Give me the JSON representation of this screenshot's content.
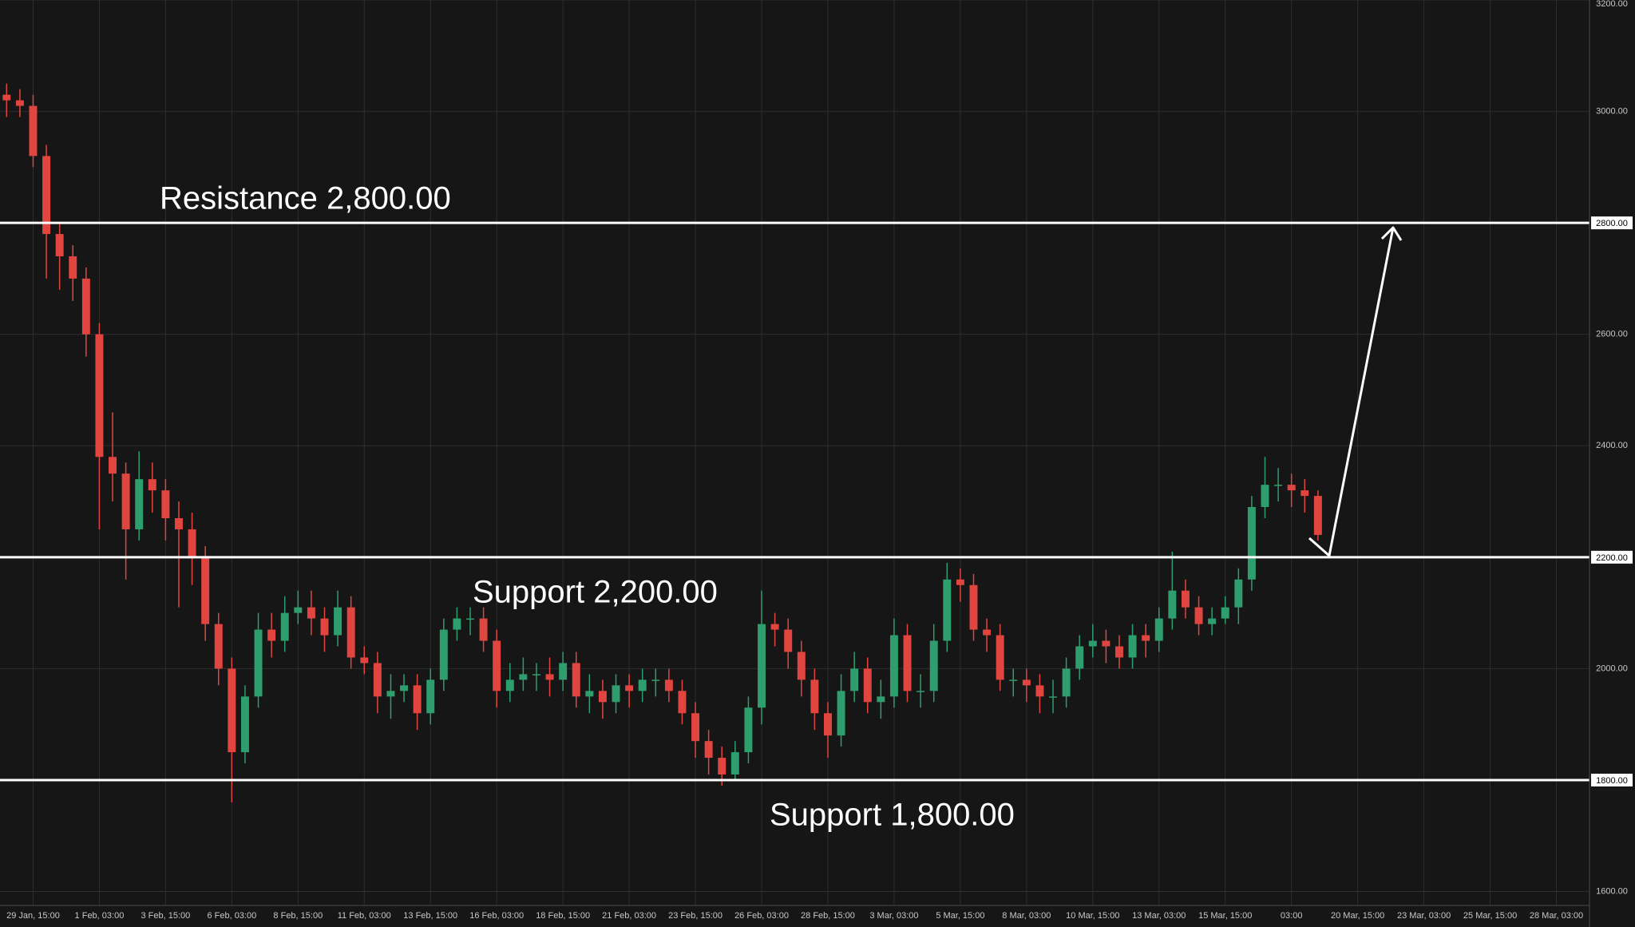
{
  "chart_data": {
    "type": "candlestick",
    "up_color": "#2f9e6e",
    "down_color": "#e0463f",
    "grid": true,
    "ylim": [
      1575,
      3200
    ],
    "yticks": [
      {
        "value": 1600,
        "label": "1600.00"
      },
      {
        "value": 1800,
        "label": "1800.00"
      },
      {
        "value": 2000,
        "label": "2000.00"
      },
      {
        "value": 2200,
        "label": "2200.00"
      },
      {
        "value": 2400,
        "label": "2400.00"
      },
      {
        "value": 2600,
        "label": "2600.00"
      },
      {
        "value": 2800,
        "label": "2800.00"
      },
      {
        "value": 3000,
        "label": "3000.00"
      },
      {
        "value": 3200,
        "label": "3200.00"
      }
    ],
    "levels": [
      {
        "value": 2800,
        "label": "2800.00",
        "text": "Resistance 2,800.00"
      },
      {
        "value": 2200,
        "label": "2200.00",
        "text": "Support 2,200.00"
      },
      {
        "value": 1800,
        "label": "1800.00",
        "text": "Support 1,800.00"
      }
    ],
    "categories": [
      null,
      null,
      "29 Jan, 15:00",
      null,
      null,
      null,
      null,
      "1 Feb, 03:00",
      null,
      null,
      null,
      null,
      "3 Feb, 15:00",
      null,
      null,
      null,
      null,
      "6 Feb, 03:00",
      null,
      null,
      null,
      null,
      "8 Feb, 15:00",
      null,
      null,
      null,
      null,
      "11 Feb, 03:00",
      null,
      null,
      null,
      null,
      "13 Feb, 15:00",
      null,
      null,
      null,
      null,
      "16 Feb, 03:00",
      null,
      null,
      null,
      null,
      "18 Feb, 15:00",
      null,
      null,
      null,
      null,
      "21 Feb, 03:00",
      null,
      null,
      null,
      null,
      "23 Feb, 15:00",
      null,
      null,
      null,
      null,
      "26 Feb, 03:00",
      null,
      null,
      null,
      null,
      "28 Feb, 15:00",
      null,
      null,
      null,
      null,
      "3 Mar, 03:00",
      null,
      null,
      null,
      null,
      "5 Mar, 15:00",
      null,
      null,
      null,
      null,
      "8 Mar, 03:00",
      null,
      null,
      null,
      null,
      "10 Mar, 15:00",
      null,
      null,
      null,
      null,
      "13 Mar, 03:00",
      null,
      null,
      null,
      null,
      "15 Mar, 15:00",
      null,
      null,
      null,
      null,
      "03:00",
      null,
      null,
      null,
      null,
      "20 Mar, 15:00",
      null,
      null,
      null,
      null,
      "23 Mar, 03:00",
      null,
      null,
      null,
      null,
      "25 Mar, 15:00",
      null,
      null,
      null,
      null,
      "28 Mar, 03:00",
      null,
      null
    ],
    "open": [
      3030,
      3020,
      3010,
      2920,
      2780,
      2740,
      2700,
      2600,
      2380,
      2350,
      2250,
      2340,
      2320,
      2270,
      2250,
      2200,
      2080,
      2000,
      1850,
      1950,
      2070,
      2050,
      2100,
      2110,
      2090,
      2060,
      2110,
      2020,
      2010,
      1950,
      1960,
      1970,
      1920,
      1980,
      2070,
      2090,
      2090,
      2050,
      1960,
      1980,
      1990,
      1990,
      1980,
      2010,
      1950,
      1960,
      1940,
      1970,
      1960,
      1980,
      1980,
      1960,
      1920,
      1870,
      1840,
      1810,
      1850,
      1930,
      2080,
      2070,
      2030,
      1980,
      1920,
      1880,
      1960,
      2000,
      1940,
      1950,
      2060,
      1960,
      1960,
      2050,
      2160,
      2150,
      2070,
      2060,
      1980,
      1980,
      1970,
      1950,
      1950,
      2000,
      2040,
      2050,
      2040,
      2020,
      2060,
      2050,
      2090,
      2140,
      2110,
      2080,
      2090,
      2110,
      2160,
      2290,
      2330,
      2330,
      2320,
      2310,
      null,
      null,
      null,
      null,
      null,
      null,
      null,
      null,
      null,
      null,
      null,
      null,
      null,
      null,
      null,
      null,
      null,
      null,
      null,
      null
    ],
    "high": [
      3050,
      3040,
      3030,
      2940,
      2800,
      2760,
      2720,
      2620,
      2460,
      2370,
      2390,
      2370,
      2340,
      2300,
      2280,
      2220,
      2100,
      2020,
      1970,
      2100,
      2100,
      2130,
      2140,
      2140,
      2110,
      2140,
      2130,
      2040,
      2030,
      1990,
      1990,
      1990,
      2000,
      2090,
      2110,
      2110,
      2110,
      2070,
      2010,
      2020,
      2010,
      2020,
      2030,
      2030,
      1990,
      1980,
      1990,
      1990,
      2000,
      2000,
      2000,
      1980,
      1940,
      1890,
      1860,
      1870,
      1950,
      2140,
      2100,
      2090,
      2050,
      2000,
      1940,
      1990,
      2030,
      2020,
      1980,
      2090,
      2080,
      1990,
      2080,
      2190,
      2180,
      2170,
      2090,
      2080,
      2000,
      2000,
      1990,
      1980,
      2020,
      2060,
      2080,
      2070,
      2060,
      2080,
      2080,
      2110,
      2210,
      2160,
      2130,
      2110,
      2130,
      2180,
      2310,
      2380,
      2360,
      2350,
      2340,
      2320,
      null,
      null,
      null,
      null,
      null,
      null,
      null,
      null,
      null,
      null,
      null,
      null,
      null,
      null,
      null,
      null,
      null,
      null,
      null,
      null
    ],
    "low": [
      2990,
      2990,
      2900,
      2700,
      2680,
      2660,
      2560,
      2250,
      2300,
      2160,
      2230,
      2280,
      2230,
      2110,
      2150,
      2050,
      1970,
      1760,
      1830,
      1930,
      2020,
      2030,
      2080,
      2060,
      2030,
      2040,
      2000,
      1990,
      1920,
      1910,
      1940,
      1890,
      1900,
      1960,
      2050,
      2060,
      2030,
      1930,
      1940,
      1960,
      1960,
      1950,
      1960,
      1930,
      1920,
      1910,
      1920,
      1930,
      1940,
      1950,
      1940,
      1900,
      1840,
      1810,
      1790,
      1800,
      1830,
      1900,
      2040,
      2000,
      1950,
      1890,
      1840,
      1860,
      1940,
      1920,
      1910,
      1930,
      1940,
      1930,
      1940,
      2030,
      2120,
      2050,
      2030,
      1960,
      1950,
      1940,
      1920,
      1920,
      1930,
      1980,
      2020,
      2010,
      2000,
      2000,
      2020,
      2030,
      2070,
      2090,
      2060,
      2060,
      2080,
      2080,
      2140,
      2270,
      2300,
      2290,
      2280,
      2230,
      null,
      null,
      null,
      null,
      null,
      null,
      null,
      null,
      null,
      null,
      null,
      null,
      null,
      null,
      null,
      null,
      null,
      null,
      null,
      null
    ],
    "close": [
      3020,
      3010,
      2920,
      2780,
      2740,
      2700,
      2600,
      2380,
      2350,
      2250,
      2340,
      2320,
      2270,
      2250,
      2200,
      2080,
      2000,
      1850,
      1950,
      2070,
      2050,
      2100,
      2110,
      2090,
      2060,
      2110,
      2020,
      2010,
      1950,
      1960,
      1970,
      1920,
      1980,
      2070,
      2090,
      2090,
      2050,
      1960,
      1980,
      1990,
      1990,
      1980,
      2010,
      1950,
      1960,
      1940,
      1970,
      1960,
      1980,
      1980,
      1960,
      1920,
      1870,
      1840,
      1810,
      1850,
      1930,
      2080,
      2070,
      2030,
      1980,
      1920,
      1880,
      1960,
      2000,
      1940,
      1950,
      2060,
      1960,
      1960,
      2050,
      2160,
      2150,
      2070,
      2060,
      1980,
      1980,
      1970,
      1950,
      1950,
      2000,
      2040,
      2050,
      2040,
      2020,
      2060,
      2050,
      2090,
      2140,
      2110,
      2080,
      2090,
      2110,
      2160,
      2290,
      2330,
      2330,
      2320,
      2310,
      2240,
      null,
      null,
      null,
      null,
      null,
      null,
      null,
      null,
      null,
      null,
      null,
      null,
      null,
      null,
      null,
      null,
      null,
      null,
      null,
      null
    ]
  }
}
